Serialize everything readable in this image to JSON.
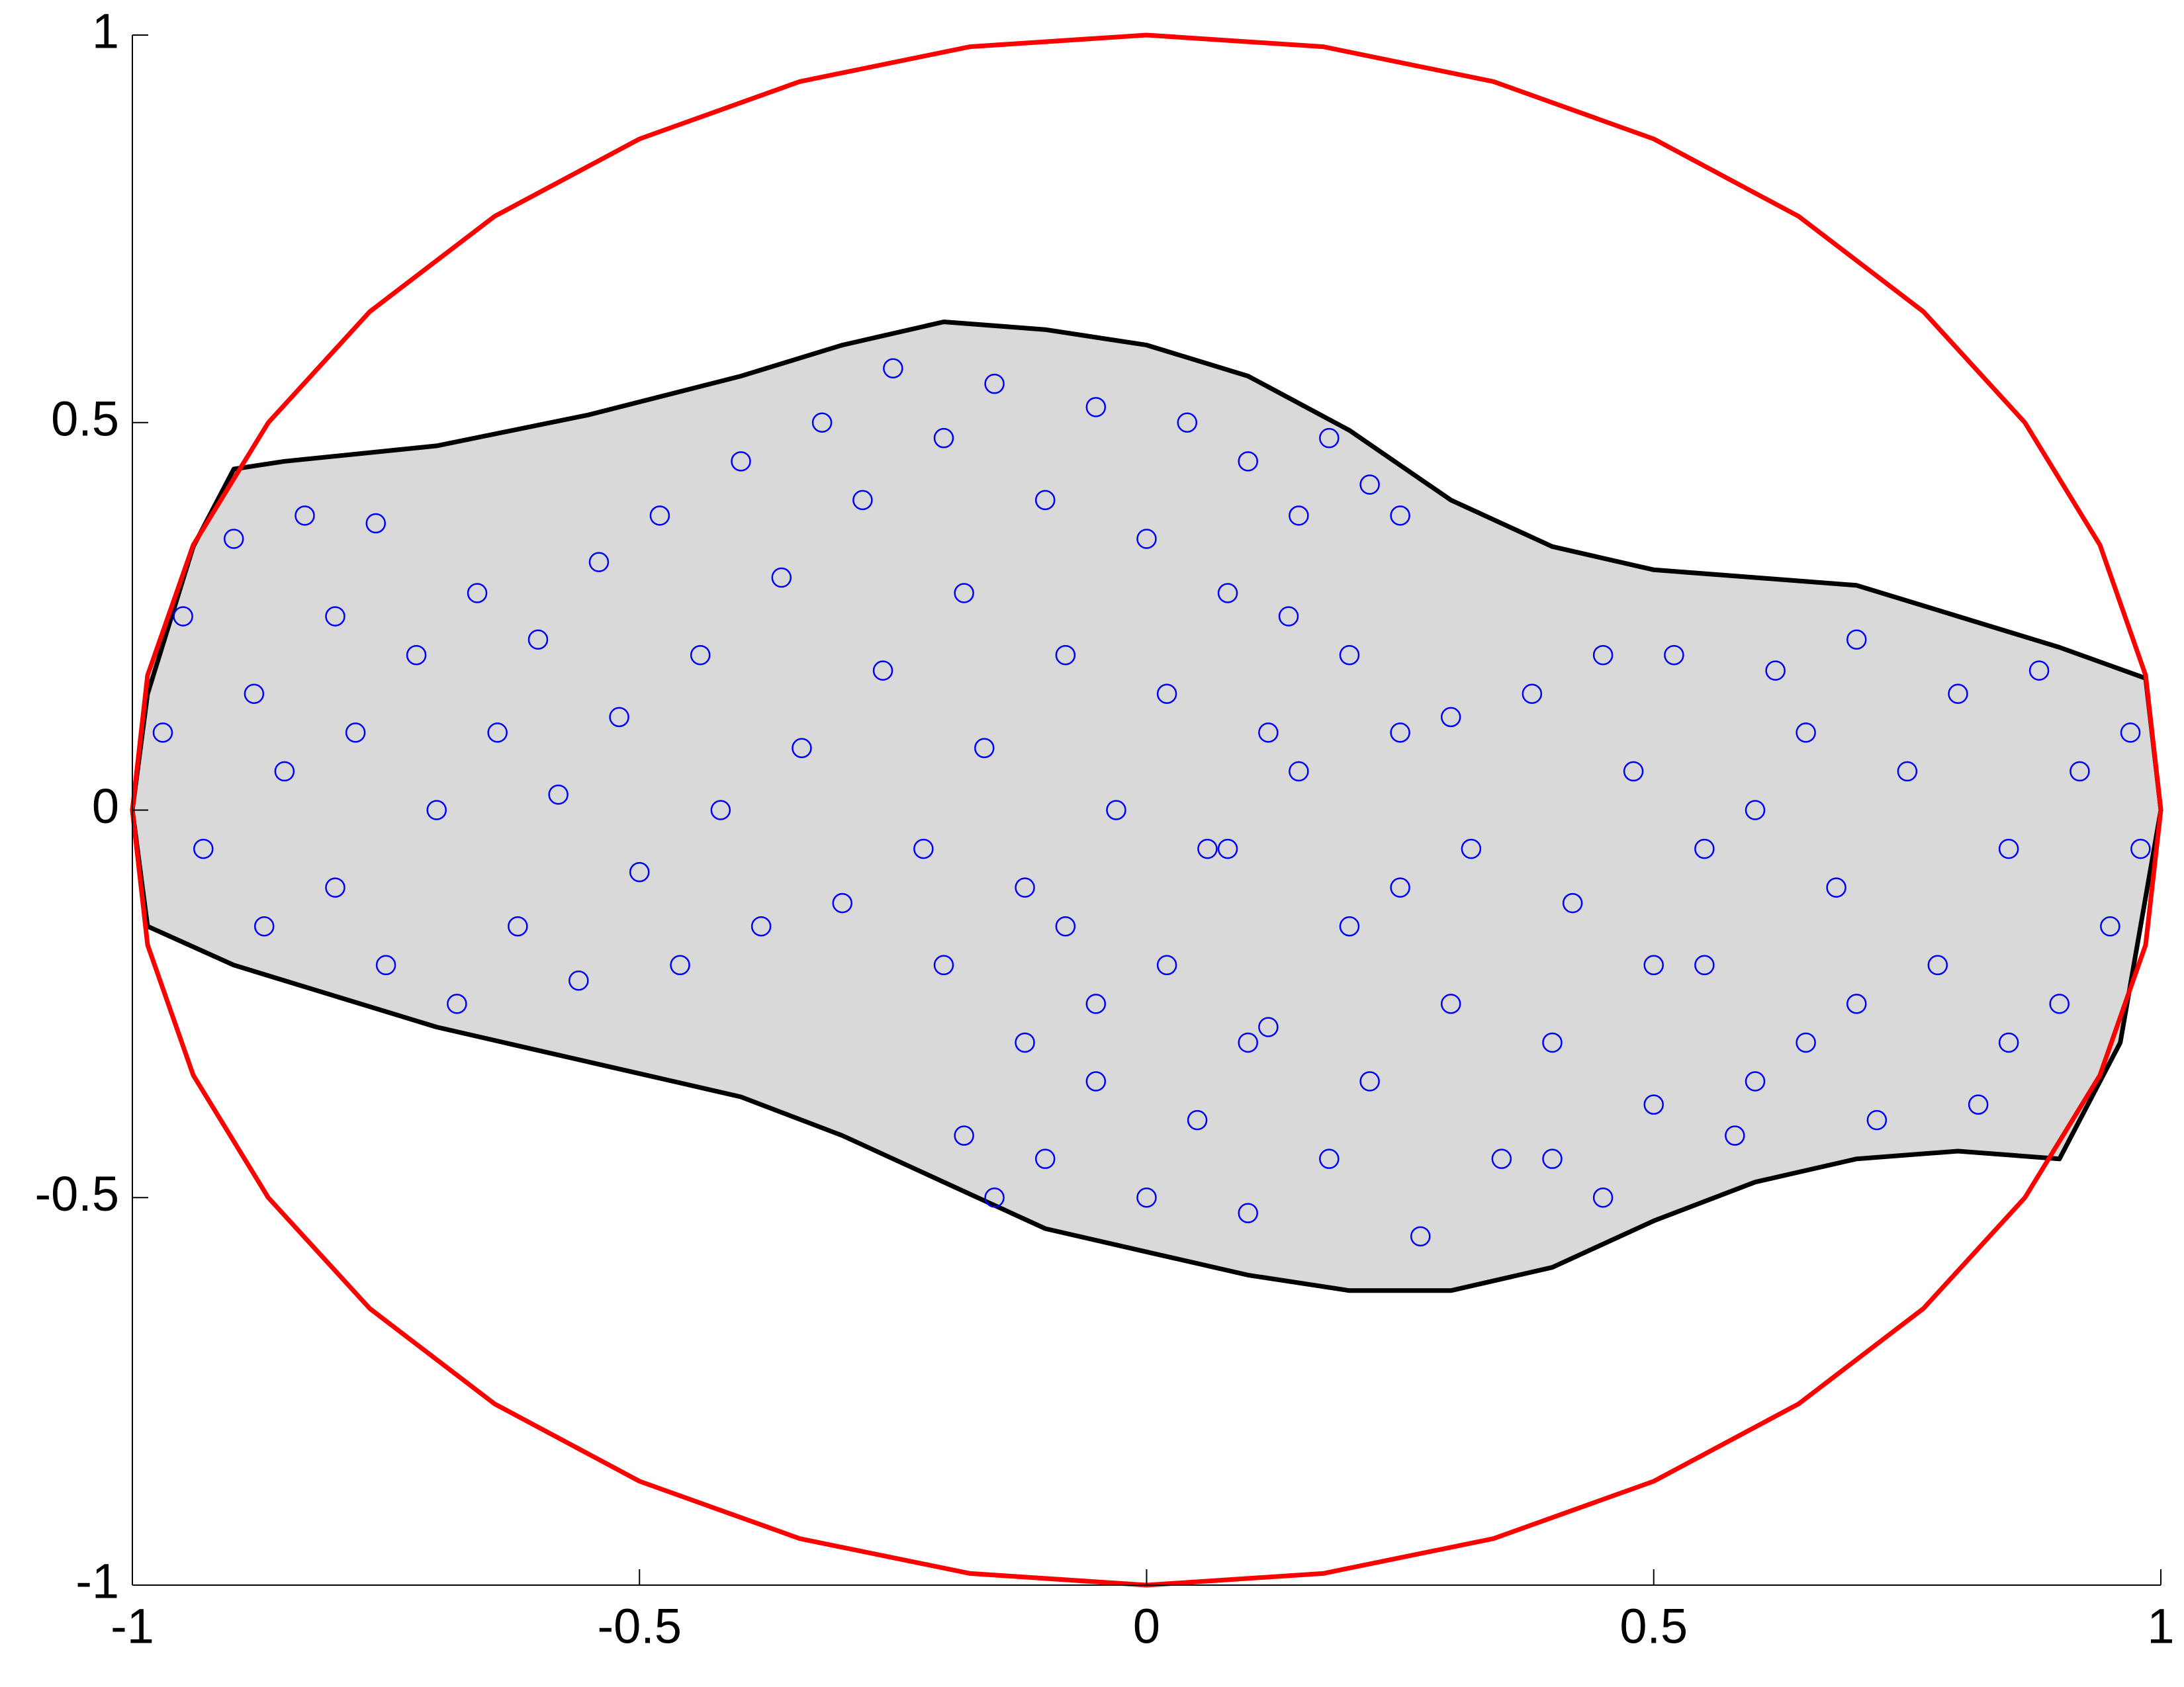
{
  "chart_data": {
    "type": "scatter",
    "xlim": [
      -1,
      1
    ],
    "ylim": [
      -1,
      1
    ],
    "xticks": [
      -1,
      -0.5,
      0,
      0.5,
      1
    ],
    "yticks": [
      -1,
      -0.5,
      0,
      0.5,
      1
    ],
    "series": [
      {
        "type": "area",
        "color": "#d9d9d9",
        "edgecolor": "#000000",
        "x": [
          -0.9,
          -0.85,
          -0.7,
          -0.55,
          -0.4,
          -0.3,
          -0.2,
          -0.1,
          0,
          0.1,
          0.2,
          0.3,
          0.4,
          0.5,
          0.6,
          0.7,
          0.8,
          0.9,
          0.985,
          1,
          0.96,
          0.9,
          0.8,
          0.7,
          0.6,
          0.5,
          0.4,
          0.3,
          0.2,
          0.1,
          0,
          -0.1,
          -0.2,
          -0.3,
          -0.4,
          -0.5,
          -0.6,
          -0.7,
          -0.8,
          -0.9,
          -0.985,
          -1,
          -0.985,
          -0.94
        ],
        "values": [
          0.44,
          0.45,
          0.47,
          0.51,
          0.56,
          0.6,
          0.63,
          0.62,
          0.6,
          0.56,
          0.49,
          0.4,
          0.34,
          0.31,
          0.3,
          0.29,
          0.25,
          0.21,
          0.17,
          0,
          -0.3,
          -0.45,
          -0.44,
          -0.45,
          -0.48,
          -0.53,
          -0.59,
          -0.62,
          -0.62,
          -0.6,
          -0.57,
          -0.54,
          -0.48,
          -0.42,
          -0.37,
          -0.34,
          -0.31,
          -0.28,
          -0.24,
          -0.2,
          -0.15,
          0,
          0.15,
          0.34
        ]
      },
      {
        "type": "line",
        "color": "#ff0000",
        "x": [
          1,
          0.985,
          0.94,
          0.866,
          0.766,
          0.643,
          0.5,
          0.342,
          0.174,
          0,
          -0.174,
          -0.342,
          -0.5,
          -0.643,
          -0.766,
          -0.866,
          -0.94,
          -0.985,
          -1,
          -0.985,
          -0.94,
          -0.866,
          -0.766,
          -0.643,
          -0.5,
          -0.342,
          -0.174,
          0,
          0.174,
          0.342,
          0.5,
          0.643,
          0.766,
          0.866,
          0.94,
          0.985,
          1
        ],
        "values": [
          0,
          0.174,
          0.342,
          0.5,
          0.643,
          0.766,
          0.866,
          0.94,
          0.985,
          1,
          0.985,
          0.94,
          0.866,
          0.766,
          0.643,
          0.5,
          0.342,
          0.174,
          0,
          -0.174,
          -0.342,
          -0.5,
          -0.643,
          -0.766,
          -0.866,
          -0.94,
          -0.985,
          -1,
          -0.985,
          -0.94,
          -0.866,
          -0.766,
          -0.643,
          -0.5,
          -0.342,
          -0.174,
          0
        ]
      },
      {
        "type": "scatter",
        "color": "#0000ff",
        "x": [
          -0.97,
          -0.95,
          -0.93,
          -0.9,
          -0.88,
          -0.87,
          -0.85,
          -0.83,
          -0.8,
          -0.8,
          -0.78,
          -0.76,
          -0.75,
          -0.72,
          -0.7,
          -0.68,
          -0.66,
          -0.64,
          -0.62,
          -0.6,
          -0.58,
          -0.56,
          -0.54,
          -0.52,
          -0.5,
          -0.48,
          -0.46,
          -0.44,
          -0.42,
          -0.4,
          -0.38,
          -0.36,
          -0.34,
          -0.32,
          -0.3,
          -0.28,
          -0.26,
          -0.25,
          -0.22,
          -0.2,
          -0.18,
          -0.16,
          -0.15,
          -0.12,
          -0.1,
          -0.08,
          -0.05,
          -0.03,
          0,
          0.02,
          0.04,
          0.06,
          0.08,
          0.1,
          0.12,
          0.15,
          0.18,
          0.2,
          0.22,
          0.25,
          0.14,
          -0.2,
          -0.18,
          -0.15,
          -0.12,
          -0.1,
          -0.08,
          -0.05,
          0,
          0.02,
          0.05,
          0.08,
          0.1,
          0.12,
          0.15,
          0.18,
          0.2,
          0.22,
          0.25,
          0.27,
          0.3,
          0.32,
          0.35,
          0.38,
          0.4,
          0.42,
          0.45,
          0.48,
          0.5,
          0.52,
          0.55,
          0.58,
          0.6,
          0.62,
          0.65,
          0.68,
          0.7,
          0.72,
          0.75,
          0.78,
          0.8,
          0.82,
          0.85,
          0.88,
          0.9,
          0.92,
          0.95,
          0.97,
          0.98,
          0.3,
          0.45,
          0.55,
          0.65,
          0.4,
          0.1,
          0.25,
          0.5,
          0.7,
          0.85,
          -0.05,
          0.6
        ],
        "values": [
          0.1,
          0.25,
          -0.05,
          0.35,
          0.15,
          -0.15,
          0.05,
          0.38,
          0.25,
          -0.1,
          0.1,
          0.37,
          -0.2,
          0.2,
          0,
          -0.25,
          0.28,
          0.1,
          -0.15,
          0.22,
          0.02,
          -0.22,
          0.32,
          0.12,
          -0.08,
          0.38,
          -0.2,
          0.2,
          0,
          0.45,
          -0.15,
          0.3,
          0.08,
          0.5,
          -0.12,
          0.4,
          0.18,
          0.57,
          -0.05,
          0.48,
          0.28,
          0.08,
          0.55,
          -0.1,
          0.4,
          0.2,
          0.52,
          0,
          0.35,
          0.15,
          0.5,
          -0.05,
          0.28,
          0.45,
          0.1,
          0.38,
          0.48,
          0.2,
          0.42,
          0.38,
          0.25,
          -0.2,
          -0.42,
          -0.5,
          -0.3,
          -0.45,
          -0.15,
          -0.35,
          -0.5,
          -0.2,
          -0.4,
          -0.05,
          -0.52,
          -0.28,
          0.05,
          -0.45,
          -0.15,
          -0.35,
          0.1,
          -0.55,
          -0.25,
          -0.05,
          -0.45,
          0.15,
          -0.3,
          -0.12,
          -0.5,
          0.05,
          -0.38,
          0.2,
          -0.2,
          -0.42,
          0,
          0.18,
          -0.3,
          -0.1,
          0.22,
          -0.4,
          0.05,
          -0.2,
          0.15,
          -0.38,
          -0.05,
          0.18,
          -0.25,
          0.05,
          -0.15,
          0.1,
          -0.05,
          0.12,
          0.2,
          -0.05,
          0.1,
          -0.45,
          -0.3,
          -0.1,
          -0.2,
          -0.25,
          -0.3,
          -0.25,
          -0.35
        ]
      }
    ]
  }
}
